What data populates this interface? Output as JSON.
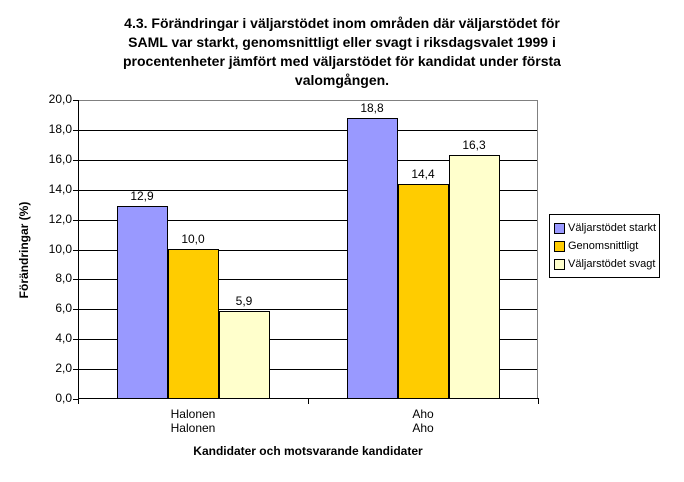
{
  "chart_data": {
    "type": "bar",
    "title": "4.3. Förändringar i väljarstödet inom områden där väljarstödet för SAML var starkt, genomsnittligt eller svagt i riksdagsvalet 1999 i procentenheter jämfört med väljarstödet för kandidat under första valomgången.",
    "title_lines": [
      "4.3. Förändringar i väljarstödet inom områden där väljarstödet för",
      "SAML var starkt, genomsnittligt eller svagt i riksdagsvalet 1999 i",
      "procentenheter jämfört med väljarstödet för kandidat under första",
      "valomgången."
    ],
    "xlabel": "Kandidater och motsvarande kandidater",
    "ylabel": "Förändringar (%)",
    "ylim": [
      0,
      20
    ],
    "ytick_step": 2,
    "ytick_labels": [
      "0,0",
      "2,0",
      "4,0",
      "6,0",
      "8,0",
      "10,0",
      "12,0",
      "14,0",
      "16,0",
      "18,0",
      "20,0"
    ],
    "categories": [
      [
        "Halonen",
        "Halonen"
      ],
      [
        "Aho",
        "Aho"
      ]
    ],
    "series": [
      {
        "name": "Väljarstödet starkt",
        "color": "#9999FF",
        "values": [
          12.9,
          18.8
        ],
        "labels": [
          "12,9",
          "18,8"
        ]
      },
      {
        "name": "Genomsnittligt",
        "color": "#FFCC00",
        "values": [
          10.0,
          14.4
        ],
        "labels": [
          "10,0",
          "14,4"
        ]
      },
      {
        "name": "Väljarstödet svagt",
        "color": "#FFFFCC",
        "values": [
          5.9,
          16.3
        ],
        "labels": [
          "5,9",
          "16,3"
        ]
      }
    ],
    "grid": true,
    "legend_position": "right",
    "colors": {
      "plot_border": "#808080",
      "gridline": "#000000",
      "axis": "#000000",
      "background": "#FFFFFF"
    }
  }
}
